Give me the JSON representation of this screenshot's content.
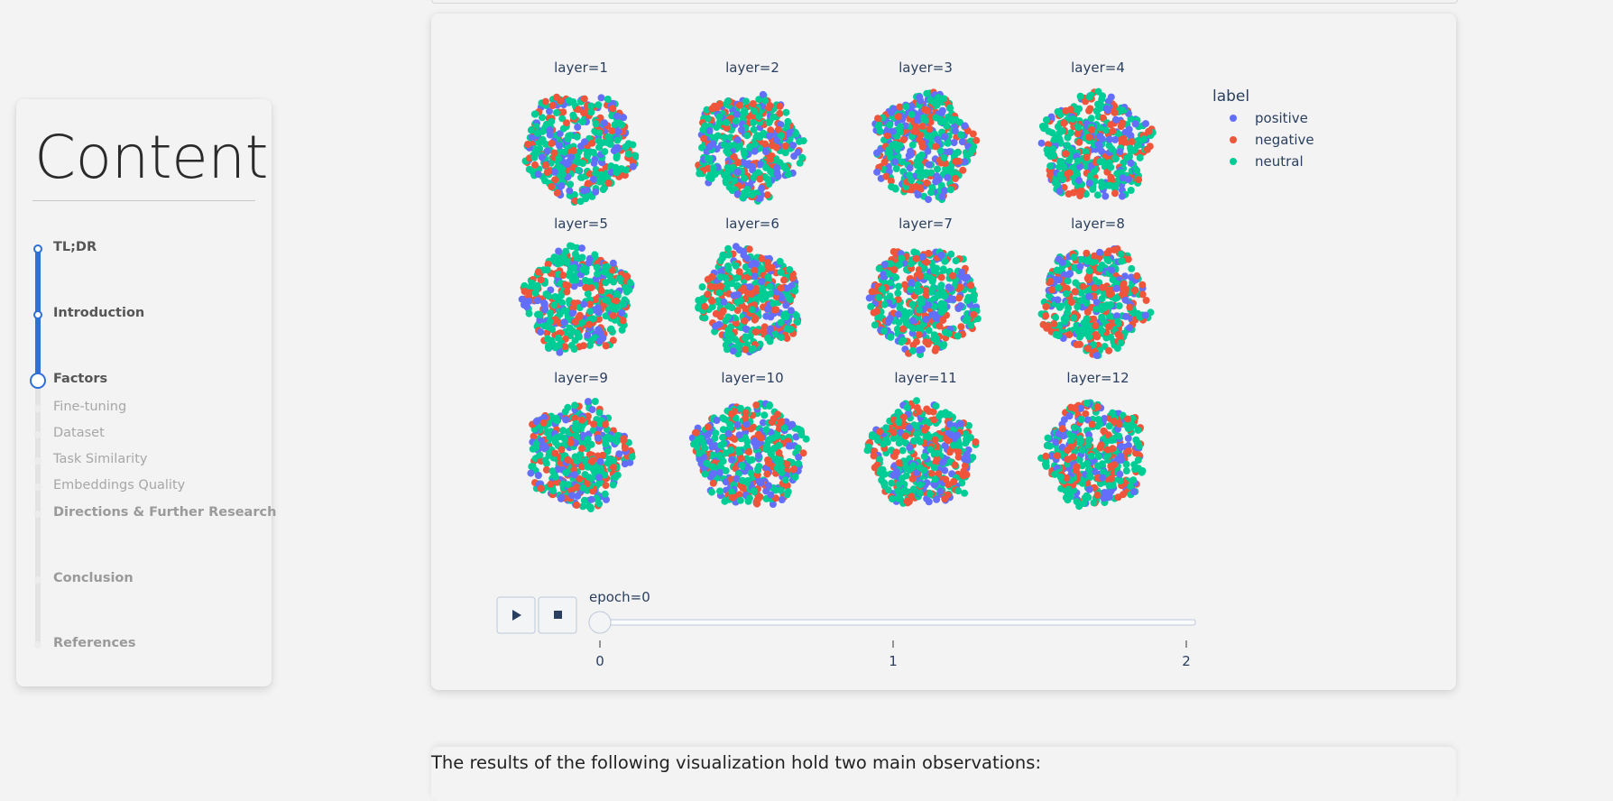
{
  "toc": {
    "title": "Content",
    "items": [
      {
        "label": "TL;DR",
        "level": "major",
        "state": "done"
      },
      {
        "label": "Introduction",
        "level": "major",
        "state": "done"
      },
      {
        "label": "Factors",
        "level": "major",
        "state": "current"
      },
      {
        "label": "Fine-tuning",
        "level": "minor",
        "state": "pending"
      },
      {
        "label": "Dataset",
        "level": "minor",
        "state": "pending"
      },
      {
        "label": "Task Similarity",
        "level": "minor",
        "state": "pending"
      },
      {
        "label": "Embeddings Quality",
        "level": "minor",
        "state": "pending"
      },
      {
        "label": "Directions & Further Research",
        "level": "major",
        "state": "pending"
      },
      {
        "label": "Conclusion",
        "level": "major",
        "state": "pending"
      },
      {
        "label": "References",
        "level": "major",
        "state": "pending"
      }
    ],
    "accent": "#2f6fd6"
  },
  "chart_data": {
    "type": "scatter",
    "facet_titles": [
      "layer=1",
      "layer=2",
      "layer=3",
      "layer=4",
      "layer=5",
      "layer=6",
      "layer=7",
      "layer=8",
      "layer=9",
      "layer=10",
      "layer=11",
      "layer=12"
    ],
    "legend": {
      "title": "label",
      "placement": "top-right"
    },
    "series": [
      {
        "name": "positive",
        "color": "#636efa"
      },
      {
        "name": "negative",
        "color": "#ef553b"
      },
      {
        "name": "neutral",
        "color": "#00cc96"
      }
    ],
    "slider": {
      "current_label": "epoch=0",
      "ticks": [
        "0",
        "1",
        "2"
      ],
      "value": 0
    },
    "controls": {
      "play_icon": "play-icon",
      "stop_icon": "stop-icon"
    }
  },
  "body": {
    "intro_text": "The results of the following visualization hold two main observations:"
  }
}
